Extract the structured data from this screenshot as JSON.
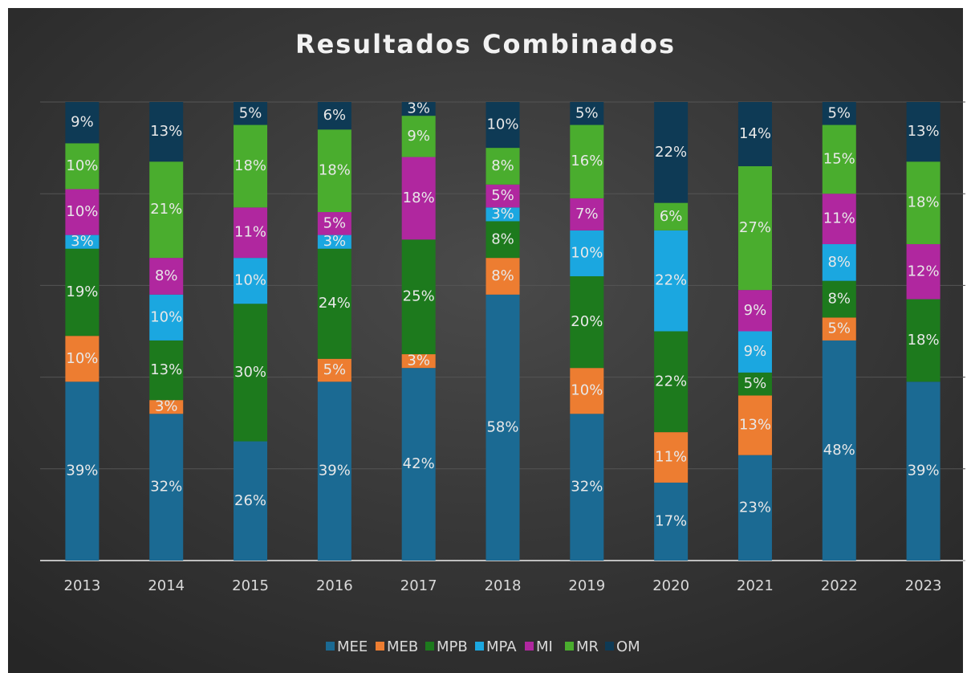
{
  "chart_data": {
    "type": "stacked_bar",
    "title": "Resultados Combinados",
    "categories": [
      "2013",
      "2014",
      "2015",
      "2016",
      "2017",
      "2018",
      "2019",
      "2020",
      "2021",
      "2022",
      "2023"
    ],
    "ylim": [
      0,
      100
    ],
    "yticks": [
      0,
      20,
      40,
      60,
      80,
      100
    ],
    "grid": true,
    "legend": "bottom",
    "series": [
      {
        "name": "MEE",
        "color": "#1b6a93",
        "values": [
          39,
          32,
          26,
          39,
          42,
          58,
          32,
          17,
          23,
          48,
          39
        ],
        "value_labels": [
          "39%",
          "32%",
          "26%",
          "39%",
          "42%",
          "58%",
          "32%",
          "17%",
          "23%",
          "48%",
          "39%"
        ]
      },
      {
        "name": "MEB",
        "color": "#ed7d31",
        "values": [
          10,
          3,
          null,
          5,
          3,
          8,
          10,
          11,
          13,
          5,
          null
        ],
        "value_labels": [
          "10%",
          "3%",
          null,
          "5%",
          "3%",
          "8%",
          "10%",
          "11%",
          "13%",
          "5%",
          null
        ]
      },
      {
        "name": "MPB",
        "color": "#1d7a1d",
        "values": [
          19,
          13,
          30,
          24,
          25,
          8,
          20,
          22,
          5,
          8,
          18
        ],
        "value_labels": [
          "19%",
          "13%",
          "30%",
          "24%",
          "25%",
          "8%",
          "20%",
          "22%",
          "5%",
          "8%",
          "18%"
        ]
      },
      {
        "name": "MPA",
        "color": "#1ba7e0",
        "values": [
          3,
          10,
          10,
          3,
          null,
          3,
          10,
          22,
          9,
          8,
          null
        ],
        "value_labels": [
          "3%",
          "10%",
          "10%",
          "3%",
          null,
          "3%",
          "10%",
          "22%",
          "9%",
          "8%",
          null
        ]
      },
      {
        "name": "MI",
        "color": "#b0279f",
        "values": [
          10,
          8,
          11,
          5,
          18,
          5,
          7,
          null,
          9,
          11,
          12
        ],
        "value_labels": [
          "10%",
          "8%",
          "11%",
          "5%",
          "18%",
          "5%",
          "7%",
          null,
          "9%",
          "11%",
          "12%"
        ]
      },
      {
        "name": "MR",
        "color": "#4aad2e",
        "values": [
          10,
          21,
          18,
          18,
          9,
          8,
          16,
          6,
          27,
          15,
          18
        ],
        "value_labels": [
          "10%",
          "21%",
          "18%",
          "18%",
          "9%",
          "8%",
          "16%",
          "6%",
          "27%",
          "15%",
          "18%"
        ]
      },
      {
        "name": "OM",
        "color": "#0e3a55",
        "values": [
          9,
          13,
          5,
          6,
          3,
          10,
          5,
          22,
          14,
          5,
          13
        ],
        "value_labels": [
          "9%",
          "13%",
          "5%",
          "6%",
          "3%",
          "10%",
          "5%",
          "22%",
          "14%",
          "5%",
          "13%"
        ]
      }
    ]
  }
}
